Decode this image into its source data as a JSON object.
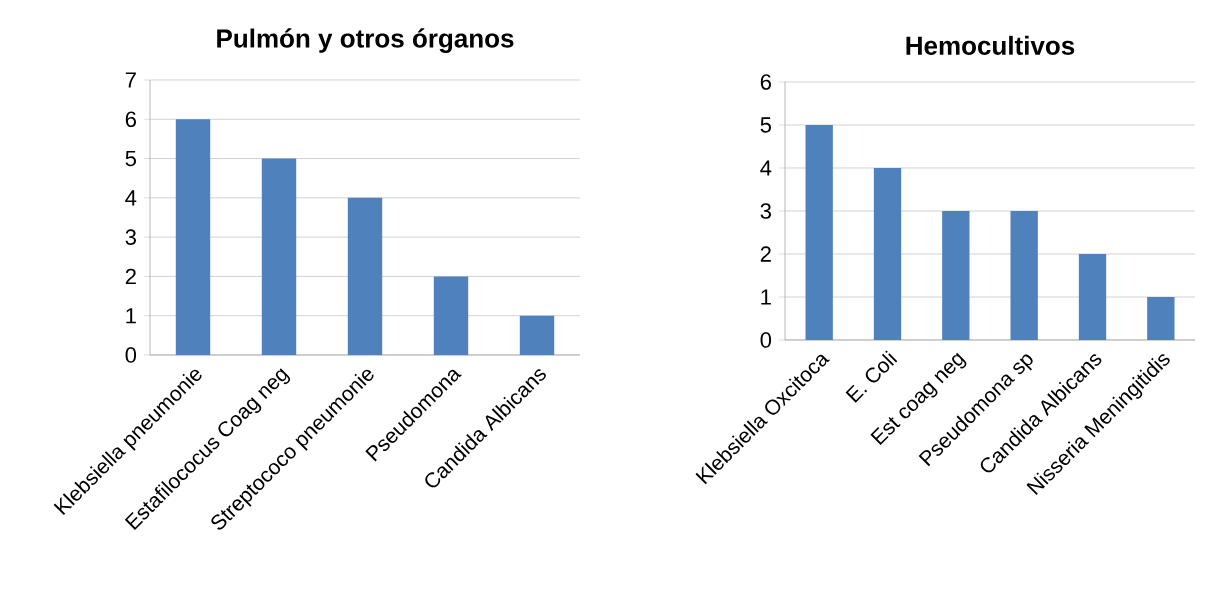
{
  "chart_data": [
    {
      "type": "bar",
      "title": "Pulmón y otros órganos",
      "categories": [
        "Klebsiella pneumonie",
        "Estafilococus Coag neg",
        "Streptococo pneumonie",
        "Pseudomona",
        "Candida Albicans"
      ],
      "values": [
        6,
        5,
        4,
        2,
        1
      ],
      "color": "#4f81bd",
      "ylim": [
        0,
        7
      ],
      "yticks": [
        0,
        1,
        2,
        3,
        4,
        5,
        6,
        7
      ],
      "grid": "y"
    },
    {
      "type": "bar",
      "title": "Hemocultivos",
      "categories": [
        "Klebsiella Oxcitoca",
        "E. Coli",
        "Est coag neg",
        "Pseudomona sp",
        "Candida Albicans",
        "Nisseria Meningitidis"
      ],
      "values": [
        5,
        4,
        3,
        3,
        2,
        1
      ],
      "color": "#4f81bd",
      "ylim": [
        0,
        6
      ],
      "yticks": [
        0,
        1,
        2,
        3,
        4,
        5,
        6
      ],
      "grid": "y"
    }
  ]
}
